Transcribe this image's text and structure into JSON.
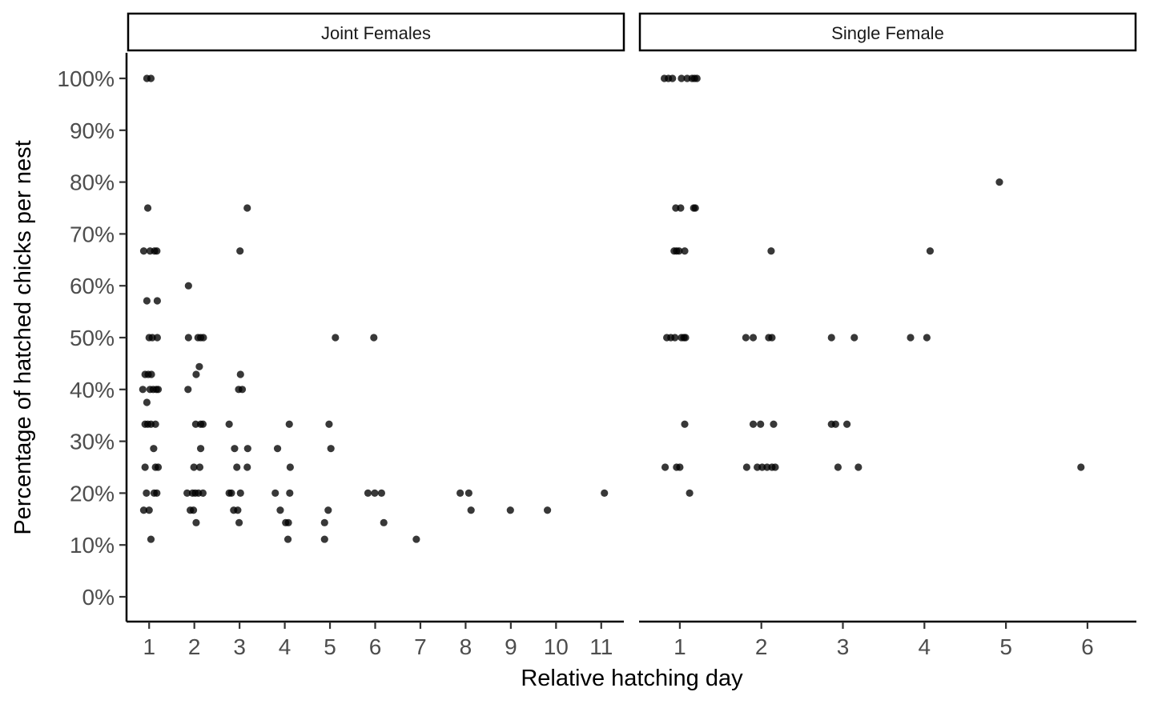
{
  "chart_data": {
    "type": "scatter",
    "xlabel": "Relative hatching day",
    "ylabel": "Percentage of hatched chicks per nest",
    "ylim": [
      0,
      100
    ],
    "y_ticks": [
      "0%",
      "10%",
      "20%",
      "30%",
      "40%",
      "50%",
      "60%",
      "70%",
      "80%",
      "90%",
      "100%"
    ],
    "grid": false,
    "legend": "none",
    "point_color": "#000000",
    "panels": [
      {
        "name": "Joint Females",
        "xlim": [
          0.5,
          11.5
        ],
        "x_ticks": [
          "1",
          "2",
          "3",
          "4",
          "5",
          "6",
          "7",
          "8",
          "9",
          "10",
          "11"
        ],
        "points": [
          {
            "x": 0.95,
            "y": 100
          },
          {
            "x": 1.04,
            "y": 100
          },
          {
            "x": 0.97,
            "y": 75
          },
          {
            "x": 3.17,
            "y": 75
          },
          {
            "x": 0.88,
            "y": 66.7
          },
          {
            "x": 1.02,
            "y": 66.7
          },
          {
            "x": 1.12,
            "y": 66.7
          },
          {
            "x": 1.17,
            "y": 66.7
          },
          {
            "x": 3.01,
            "y": 66.7
          },
          {
            "x": 1.87,
            "y": 60
          },
          {
            "x": 0.95,
            "y": 57.1
          },
          {
            "x": 1.18,
            "y": 57.1
          },
          {
            "x": 1.0,
            "y": 50
          },
          {
            "x": 1.07,
            "y": 50
          },
          {
            "x": 1.18,
            "y": 50
          },
          {
            "x": 1.87,
            "y": 50
          },
          {
            "x": 2.08,
            "y": 50
          },
          {
            "x": 2.14,
            "y": 50
          },
          {
            "x": 2.2,
            "y": 50
          },
          {
            "x": 5.12,
            "y": 50
          },
          {
            "x": 5.97,
            "y": 50
          },
          {
            "x": 2.11,
            "y": 44.4
          },
          {
            "x": 0.91,
            "y": 42.9
          },
          {
            "x": 0.98,
            "y": 42.9
          },
          {
            "x": 1.05,
            "y": 42.9
          },
          {
            "x": 2.04,
            "y": 42.9
          },
          {
            "x": 3.02,
            "y": 42.9
          },
          {
            "x": 0.86,
            "y": 40
          },
          {
            "x": 1.02,
            "y": 40
          },
          {
            "x": 1.09,
            "y": 40
          },
          {
            "x": 1.16,
            "y": 40
          },
          {
            "x": 1.2,
            "y": 40
          },
          {
            "x": 1.86,
            "y": 40
          },
          {
            "x": 2.98,
            "y": 40
          },
          {
            "x": 3.06,
            "y": 40
          },
          {
            "x": 0.95,
            "y": 37.5
          },
          {
            "x": 0.91,
            "y": 33.3
          },
          {
            "x": 0.97,
            "y": 33.3
          },
          {
            "x": 1.04,
            "y": 33.3
          },
          {
            "x": 1.14,
            "y": 33.3
          },
          {
            "x": 2.03,
            "y": 33.3
          },
          {
            "x": 2.14,
            "y": 33.3
          },
          {
            "x": 2.19,
            "y": 33.3
          },
          {
            "x": 2.77,
            "y": 33.3
          },
          {
            "x": 4.1,
            "y": 33.3
          },
          {
            "x": 4.98,
            "y": 33.3
          },
          {
            "x": 1.1,
            "y": 28.6
          },
          {
            "x": 2.14,
            "y": 28.6
          },
          {
            "x": 2.89,
            "y": 28.6
          },
          {
            "x": 3.18,
            "y": 28.6
          },
          {
            "x": 3.84,
            "y": 28.6
          },
          {
            "x": 5.02,
            "y": 28.6
          },
          {
            "x": 0.91,
            "y": 25
          },
          {
            "x": 1.14,
            "y": 25
          },
          {
            "x": 1.2,
            "y": 25
          },
          {
            "x": 1.99,
            "y": 25
          },
          {
            "x": 2.12,
            "y": 25
          },
          {
            "x": 2.94,
            "y": 25
          },
          {
            "x": 3.17,
            "y": 25
          },
          {
            "x": 4.12,
            "y": 25
          },
          {
            "x": 0.94,
            "y": 20
          },
          {
            "x": 1.11,
            "y": 20
          },
          {
            "x": 1.17,
            "y": 20
          },
          {
            "x": 1.84,
            "y": 20
          },
          {
            "x": 1.96,
            "y": 20
          },
          {
            "x": 2.02,
            "y": 20
          },
          {
            "x": 2.09,
            "y": 20
          },
          {
            "x": 2.19,
            "y": 20
          },
          {
            "x": 2.77,
            "y": 20
          },
          {
            "x": 2.82,
            "y": 20
          },
          {
            "x": 3.02,
            "y": 20
          },
          {
            "x": 3.79,
            "y": 20
          },
          {
            "x": 4.11,
            "y": 20
          },
          {
            "x": 5.84,
            "y": 20
          },
          {
            "x": 5.99,
            "y": 20
          },
          {
            "x": 6.14,
            "y": 20
          },
          {
            "x": 7.88,
            "y": 20
          },
          {
            "x": 8.07,
            "y": 20
          },
          {
            "x": 11.07,
            "y": 20
          },
          {
            "x": 0.88,
            "y": 16.7
          },
          {
            "x": 1.0,
            "y": 16.7
          },
          {
            "x": 1.91,
            "y": 16.7
          },
          {
            "x": 1.98,
            "y": 16.7
          },
          {
            "x": 2.87,
            "y": 16.7
          },
          {
            "x": 2.96,
            "y": 16.7
          },
          {
            "x": 3.9,
            "y": 16.7
          },
          {
            "x": 4.96,
            "y": 16.7
          },
          {
            "x": 8.12,
            "y": 16.7
          },
          {
            "x": 8.99,
            "y": 16.7
          },
          {
            "x": 9.81,
            "y": 16.7
          },
          {
            "x": 2.04,
            "y": 14.3
          },
          {
            "x": 2.99,
            "y": 14.3
          },
          {
            "x": 4.02,
            "y": 14.3
          },
          {
            "x": 4.08,
            "y": 14.3
          },
          {
            "x": 4.88,
            "y": 14.3
          },
          {
            "x": 6.19,
            "y": 14.3
          },
          {
            "x": 1.04,
            "y": 11.1
          },
          {
            "x": 4.07,
            "y": 11.1
          },
          {
            "x": 4.88,
            "y": 11.1
          },
          {
            "x": 6.91,
            "y": 11.1
          }
        ]
      },
      {
        "name": "Single Female",
        "xlim": [
          0.5,
          6.6
        ],
        "x_ticks": [
          "1",
          "2",
          "3",
          "4",
          "5",
          "6"
        ],
        "points": [
          {
            "x": 0.81,
            "y": 100
          },
          {
            "x": 0.86,
            "y": 100
          },
          {
            "x": 0.91,
            "y": 100
          },
          {
            "x": 1.02,
            "y": 100
          },
          {
            "x": 1.09,
            "y": 100
          },
          {
            "x": 1.15,
            "y": 100
          },
          {
            "x": 1.18,
            "y": 100
          },
          {
            "x": 1.21,
            "y": 100
          },
          {
            "x": 4.92,
            "y": 80
          },
          {
            "x": 0.95,
            "y": 75
          },
          {
            "x": 1.01,
            "y": 75
          },
          {
            "x": 1.17,
            "y": 75
          },
          {
            "x": 1.19,
            "y": 75
          },
          {
            "x": 0.93,
            "y": 66.7
          },
          {
            "x": 0.96,
            "y": 66.7
          },
          {
            "x": 0.99,
            "y": 66.7
          },
          {
            "x": 1.06,
            "y": 66.7
          },
          {
            "x": 2.12,
            "y": 66.7
          },
          {
            "x": 4.07,
            "y": 66.7
          },
          {
            "x": 0.84,
            "y": 50
          },
          {
            "x": 0.89,
            "y": 50
          },
          {
            "x": 0.94,
            "y": 50
          },
          {
            "x": 1.02,
            "y": 50
          },
          {
            "x": 1.05,
            "y": 50
          },
          {
            "x": 1.07,
            "y": 50
          },
          {
            "x": 1.81,
            "y": 50
          },
          {
            "x": 1.9,
            "y": 50
          },
          {
            "x": 2.09,
            "y": 50
          },
          {
            "x": 2.13,
            "y": 50
          },
          {
            "x": 2.86,
            "y": 50
          },
          {
            "x": 3.14,
            "y": 50
          },
          {
            "x": 3.83,
            "y": 50
          },
          {
            "x": 4.03,
            "y": 50
          },
          {
            "x": 1.06,
            "y": 33.3
          },
          {
            "x": 1.9,
            "y": 33.3
          },
          {
            "x": 1.99,
            "y": 33.3
          },
          {
            "x": 2.15,
            "y": 33.3
          },
          {
            "x": 2.86,
            "y": 33.3
          },
          {
            "x": 2.91,
            "y": 33.3
          },
          {
            "x": 3.05,
            "y": 33.3
          },
          {
            "x": 0.82,
            "y": 25
          },
          {
            "x": 0.96,
            "y": 25
          },
          {
            "x": 1.0,
            "y": 25
          },
          {
            "x": 1.82,
            "y": 25
          },
          {
            "x": 1.95,
            "y": 25
          },
          {
            "x": 2.01,
            "y": 25
          },
          {
            "x": 2.07,
            "y": 25
          },
          {
            "x": 2.13,
            "y": 25
          },
          {
            "x": 2.17,
            "y": 25
          },
          {
            "x": 2.94,
            "y": 25
          },
          {
            "x": 3.19,
            "y": 25
          },
          {
            "x": 5.92,
            "y": 25
          },
          {
            "x": 1.12,
            "y": 20
          }
        ]
      }
    ]
  }
}
